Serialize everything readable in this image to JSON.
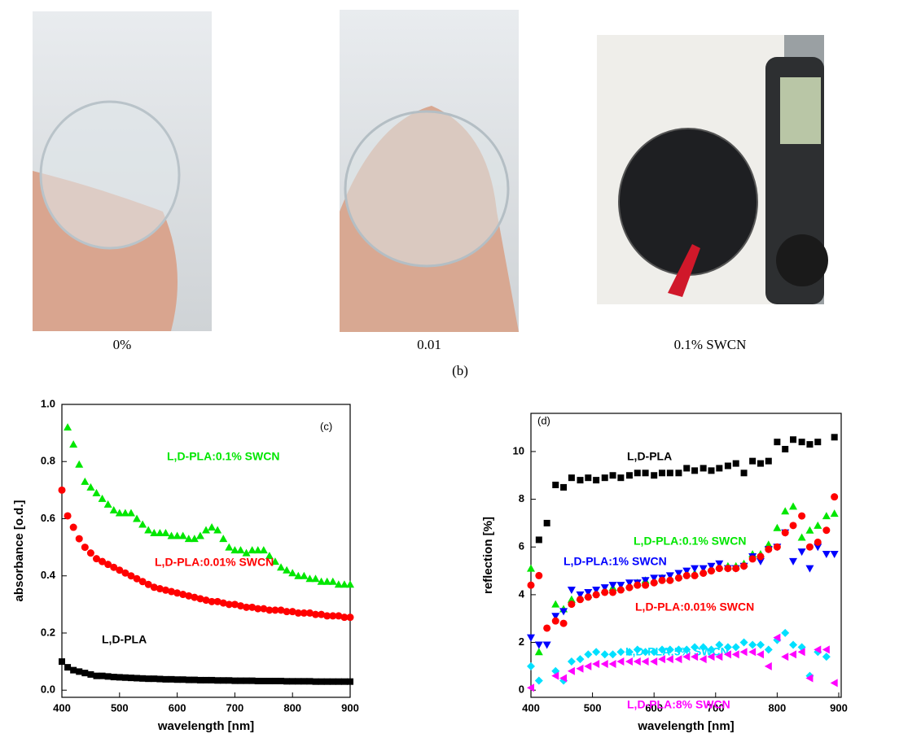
{
  "photos": {
    "captions": [
      "0%",
      "0.01",
      "0.1% SWCN"
    ],
    "panel_label": "(b)"
  },
  "chart_data": [
    {
      "type": "scatter",
      "panel_label": "(c)",
      "xlabel": "wavelength [nm]",
      "ylabel": "absorbance [o.d.]",
      "xlim": [
        400,
        900
      ],
      "ylim": [
        -0.025,
        1.0
      ],
      "xticks": [
        400,
        500,
        600,
        700,
        800,
        900
      ],
      "yticks": [
        {
          "value": 0,
          "label": "0.0"
        },
        0.2,
        0.4,
        0.6,
        0.8,
        {
          "value": 1,
          "label": "1.0"
        }
      ],
      "x": [
        400,
        410,
        420,
        430,
        440,
        450,
        460,
        470,
        480,
        490,
        500,
        510,
        520,
        530,
        540,
        550,
        560,
        570,
        580,
        590,
        600,
        610,
        620,
        630,
        640,
        650,
        660,
        670,
        680,
        690,
        700,
        710,
        720,
        730,
        740,
        750,
        760,
        770,
        780,
        790,
        800,
        810,
        820,
        830,
        840,
        850,
        860,
        870,
        880,
        890,
        900
      ],
      "series": [
        {
          "name": "L,D-PLA:0.1% SWCN",
          "color": "#00e600",
          "marker": "triangle-up",
          "values": [
            null,
            0.92,
            0.86,
            0.79,
            0.73,
            0.71,
            0.69,
            0.67,
            0.65,
            0.63,
            0.62,
            0.62,
            0.62,
            0.6,
            0.58,
            0.56,
            0.55,
            0.55,
            0.55,
            0.54,
            0.54,
            0.54,
            0.53,
            0.53,
            0.54,
            0.56,
            0.57,
            0.56,
            0.53,
            0.5,
            0.49,
            0.49,
            0.48,
            0.49,
            0.49,
            0.49,
            0.47,
            0.45,
            0.43,
            0.42,
            0.41,
            0.4,
            0.4,
            0.39,
            0.39,
            0.38,
            0.38,
            0.38,
            0.37,
            0.37,
            0.37
          ]
        },
        {
          "name": "L,D-PLA:0.01% SWCN",
          "color": "#ff0000",
          "marker": "circle",
          "values": [
            0.7,
            0.61,
            0.57,
            0.53,
            0.5,
            0.48,
            0.46,
            0.45,
            0.44,
            0.43,
            0.42,
            0.41,
            0.4,
            0.39,
            0.38,
            0.37,
            0.36,
            0.355,
            0.35,
            0.345,
            0.34,
            0.335,
            0.33,
            0.325,
            0.32,
            0.315,
            0.31,
            0.31,
            0.305,
            0.3,
            0.3,
            0.295,
            0.29,
            0.29,
            0.285,
            0.285,
            0.28,
            0.28,
            0.28,
            0.275,
            0.275,
            0.27,
            0.27,
            0.27,
            0.265,
            0.265,
            0.26,
            0.26,
            0.26,
            0.255,
            0.255
          ]
        },
        {
          "name": "L,D-PLA",
          "color": "#000000",
          "marker": "square",
          "values": [
            0.1,
            0.08,
            0.07,
            0.065,
            0.06,
            0.055,
            0.05,
            0.05,
            0.048,
            0.046,
            0.045,
            0.044,
            0.043,
            0.042,
            0.041,
            0.04,
            0.04,
            0.039,
            0.038,
            0.038,
            0.037,
            0.037,
            0.036,
            0.036,
            0.035,
            0.035,
            0.035,
            0.034,
            0.034,
            0.034,
            0.033,
            0.033,
            0.033,
            0.033,
            0.032,
            0.032,
            0.032,
            0.032,
            0.032,
            0.031,
            0.031,
            0.031,
            0.031,
            0.031,
            0.03,
            0.03,
            0.03,
            0.03,
            0.03,
            0.03,
            0.03
          ]
        }
      ]
    },
    {
      "type": "scatter",
      "panel_label": "(d)",
      "xlabel": "wavelength [nm]",
      "ylabel": "reflection [%]",
      "xlim": [
        400,
        904
      ],
      "ylim": [
        -0.3,
        11.6
      ],
      "xticks": [
        400,
        500,
        600,
        700,
        800,
        900
      ],
      "yticks": [
        0,
        2,
        4,
        6,
        8,
        10
      ],
      "x": [
        400,
        413,
        426,
        440,
        453,
        466,
        480,
        493,
        506,
        520,
        533,
        546,
        560,
        573,
        586,
        600,
        613,
        626,
        640,
        653,
        666,
        680,
        693,
        706,
        720,
        733,
        746,
        760,
        773,
        786,
        800,
        813,
        826,
        840,
        853,
        866,
        880,
        893
      ],
      "series": [
        {
          "name": "L,D-PLA",
          "color": "#000000",
          "marker": "square",
          "values": [
            null,
            6.3,
            7.0,
            8.6,
            8.5,
            8.9,
            8.8,
            8.9,
            8.8,
            8.9,
            9.0,
            8.9,
            9.0,
            9.1,
            9.1,
            9.0,
            9.1,
            9.1,
            9.1,
            9.3,
            9.2,
            9.3,
            9.2,
            9.3,
            9.4,
            9.5,
            9.1,
            9.6,
            9.5,
            9.6,
            10.4,
            10.1,
            10.5,
            10.4,
            10.3,
            10.4,
            null,
            10.6
          ]
        },
        {
          "name": "L,D-PLA:0.1% SWCN",
          "color": "#00e600",
          "marker": "triangle-up",
          "values": [
            5.1,
            1.6,
            null,
            3.6,
            3.4,
            3.8,
            3.9,
            4.0,
            4.1,
            4.2,
            4.3,
            4.3,
            4.4,
            4.5,
            4.6,
            4.6,
            4.7,
            4.7,
            4.8,
            4.9,
            4.9,
            5.0,
            5.1,
            5.2,
            5.2,
            5.2,
            5.3,
            5.7,
            5.7,
            6.1,
            6.8,
            7.5,
            7.7,
            6.4,
            6.7,
            6.9,
            7.3,
            7.4
          ]
        },
        {
          "name": "L,D-PLA:1% SWCN",
          "color": "#0000ff",
          "marker": "triangle-down",
          "values": [
            2.2,
            1.9,
            1.9,
            3.1,
            3.3,
            4.2,
            4.0,
            4.1,
            4.2,
            4.3,
            4.4,
            4.4,
            4.5,
            4.5,
            4.6,
            4.7,
            4.7,
            4.8,
            4.9,
            5.0,
            5.1,
            5.1,
            5.2,
            5.3,
            5.1,
            5.1,
            5.2,
            5.6,
            5.4,
            5.9,
            6.0,
            6.6,
            5.4,
            5.8,
            5.1,
            6.0,
            5.7,
            5.7
          ]
        },
        {
          "name": "L,D-PLA:0.01% SWCN",
          "color": "#ff0000",
          "marker": "circle",
          "values": [
            4.4,
            4.8,
            2.6,
            2.9,
            2.8,
            3.6,
            3.8,
            3.9,
            4.0,
            4.1,
            4.1,
            4.2,
            4.3,
            4.4,
            4.4,
            4.5,
            4.6,
            4.6,
            4.7,
            4.8,
            4.8,
            4.9,
            5.0,
            5.1,
            5.1,
            5.1,
            5.2,
            5.5,
            5.6,
            5.9,
            6.0,
            6.6,
            6.9,
            7.3,
            6.0,
            6.2,
            6.7,
            8.1
          ]
        },
        {
          "name": "L,D-PLA:5% SWCN",
          "color": "#00e0ff",
          "marker": "diamond",
          "values": [
            1.0,
            0.4,
            null,
            0.8,
            0.4,
            1.2,
            1.3,
            1.5,
            1.6,
            1.5,
            1.5,
            1.6,
            1.6,
            1.7,
            1.6,
            1.6,
            1.7,
            1.7,
            1.7,
            1.7,
            1.8,
            1.8,
            1.7,
            1.9,
            1.8,
            1.8,
            2.0,
            1.9,
            1.9,
            1.7,
            2.1,
            2.4,
            1.9,
            1.8,
            0.6,
            1.6,
            1.4,
            null
          ]
        },
        {
          "name": "L,D-PLA:8% SWCN",
          "color": "#ff00ff",
          "marker": "triangle-left",
          "values": [
            0.1,
            null,
            null,
            0.6,
            0.5,
            0.8,
            0.9,
            1.0,
            1.1,
            1.1,
            1.1,
            1.2,
            1.2,
            1.2,
            1.2,
            1.2,
            1.3,
            1.3,
            1.3,
            1.4,
            1.4,
            1.3,
            1.4,
            1.4,
            1.5,
            1.5,
            1.6,
            1.6,
            1.5,
            1.0,
            2.2,
            1.4,
            1.5,
            1.6,
            0.5,
            1.7,
            1.7,
            0.3
          ]
        }
      ]
    }
  ]
}
